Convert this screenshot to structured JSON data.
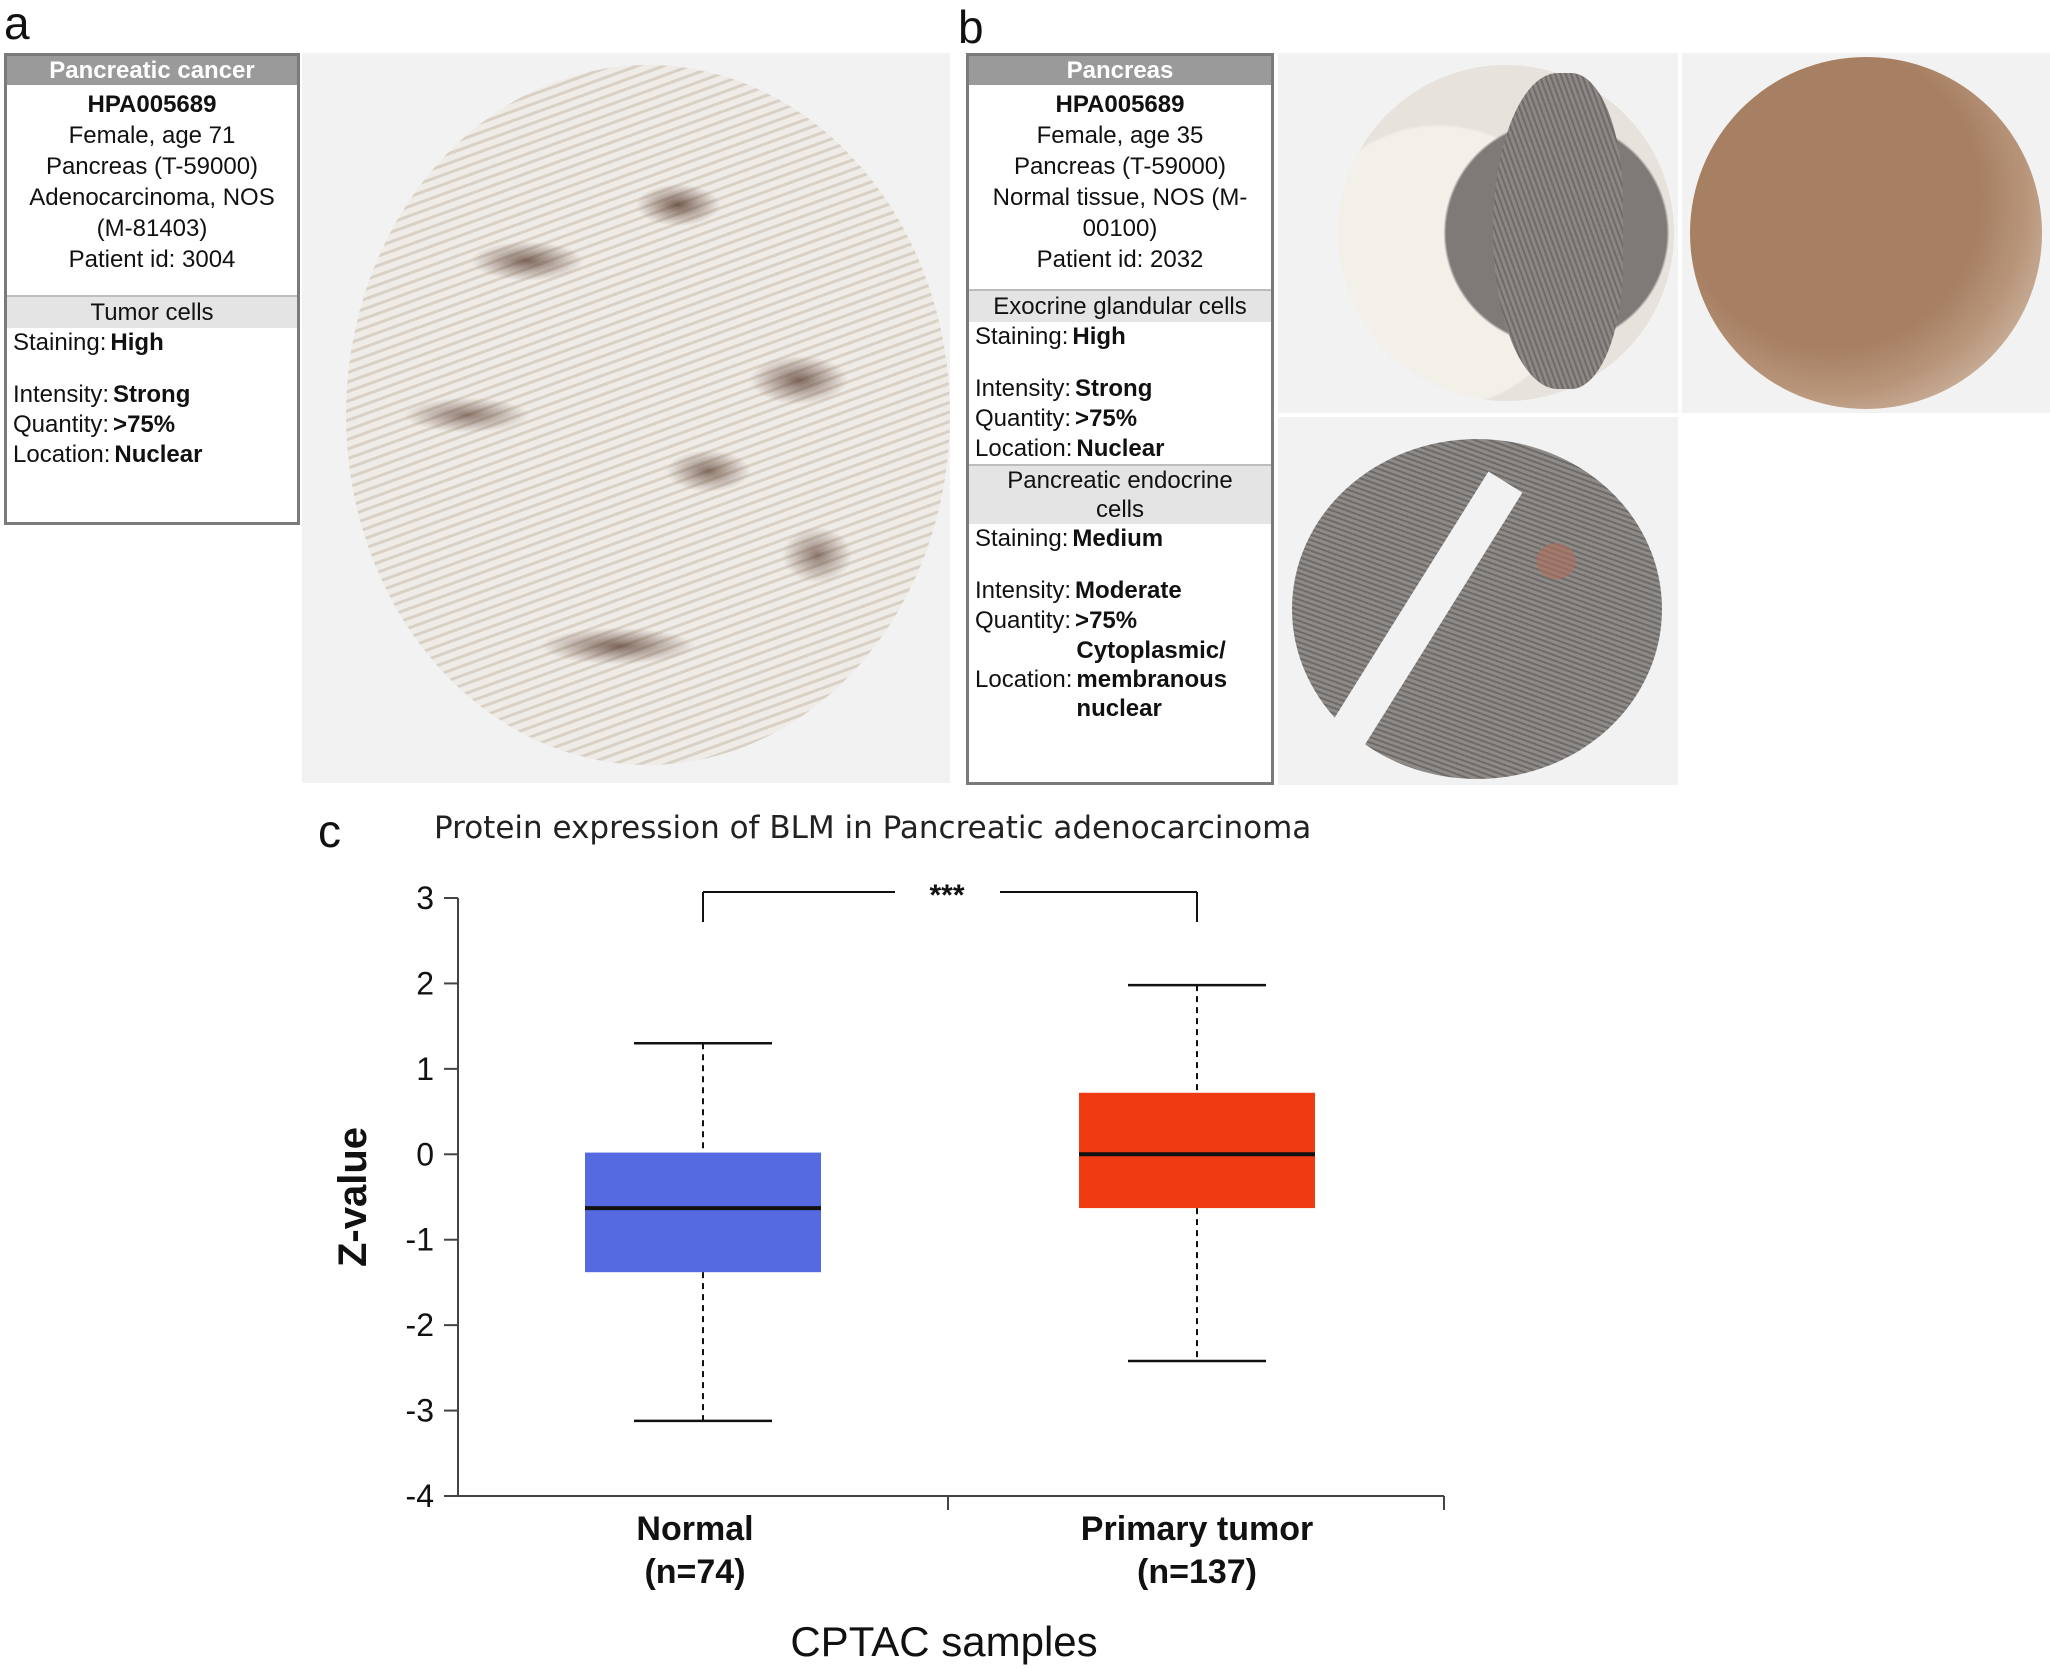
{
  "panel_labels": {
    "a": "a",
    "b": "b",
    "c": "c"
  },
  "panel_a": {
    "header": "Pancreatic cancer",
    "antibody": "HPA005689",
    "patient_lines": [
      "Female, age 71",
      "Pancreas (T-59000)",
      "Adenocarcinoma, NOS",
      "(M-81403)",
      "Patient id: 3004"
    ],
    "section": {
      "title": "Tumor cells",
      "staining_label": "Staining:",
      "staining_value": "High",
      "intensity_label": "Intensity:",
      "intensity_value": "Strong",
      "quantity_label": "Quantity:",
      "quantity_value": ">75%",
      "location_label": "Location:",
      "location_value": "Nuclear"
    }
  },
  "panel_b": {
    "header": "Pancreas",
    "antibody": "HPA005689",
    "patient_lines": [
      "Female, age 35",
      "Pancreas (T-59000)",
      "Normal tissue, NOS (M-",
      "00100)",
      "Patient id: 2032"
    ],
    "section1": {
      "title": "Exocrine glandular cells",
      "staining_label": "Staining:",
      "staining_value": "High",
      "intensity_label": "Intensity:",
      "intensity_value": "Strong",
      "quantity_label": "Quantity:",
      "quantity_value": ">75%",
      "location_label": "Location:",
      "location_value": "Nuclear"
    },
    "section2": {
      "title_line1": "Pancreatic endocrine",
      "title_line2": "cells",
      "staining_label": "Staining:",
      "staining_value": "Medium",
      "intensity_label": "Intensity:",
      "intensity_value": "Moderate",
      "quantity_label": "Quantity:",
      "quantity_value": ">75%",
      "location_label": "Location:",
      "location_value_lines": [
        "Cytoplasmic/",
        "membranous",
        "nuclear"
      ]
    }
  },
  "colors": {
    "normal_box": "#5569e0",
    "tumor_box": "#f03a12",
    "tissue_stain": "#6b4a36",
    "infobox_header": "#9a9a9a"
  },
  "chart_data": {
    "type": "boxplot",
    "title": "Protein expression of BLM in Pancreatic adenocarcinoma",
    "xlabel": "CPTAC samples",
    "ylabel": "Z-value",
    "ylim": [
      -4,
      3
    ],
    "yticks": [
      "3",
      "2",
      "1",
      "0",
      "-1",
      "-2",
      "-3",
      "-4"
    ],
    "ytick_values": [
      3,
      2,
      1,
      0,
      -1,
      -2,
      -3,
      -4
    ],
    "significance": "***",
    "groups": [
      {
        "name": "Normal",
        "n_label": "(n=74)",
        "whisker_low": -3.12,
        "q1": -1.38,
        "median": -0.63,
        "q3": 0.02,
        "whisker_high": 1.3,
        "color": "#5569e0"
      },
      {
        "name": "Primary tumor",
        "n_label": "(n=137)",
        "whisker_low": -2.42,
        "q1": -0.63,
        "median": 0.0,
        "q3": 0.72,
        "whisker_high": 1.98,
        "color": "#f03a12"
      }
    ]
  }
}
